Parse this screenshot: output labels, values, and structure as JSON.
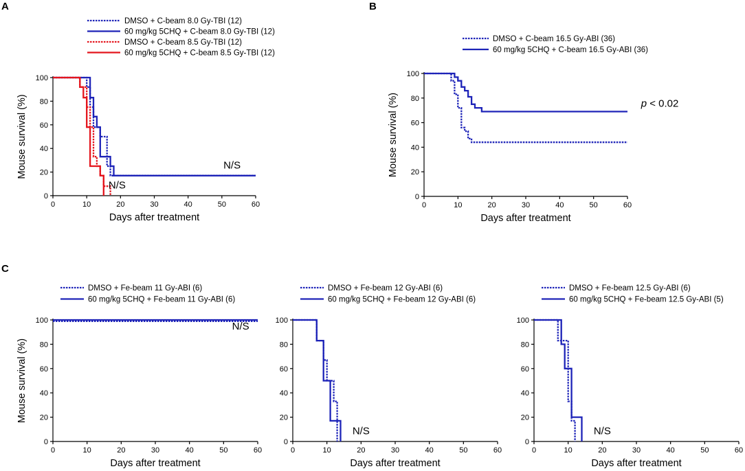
{
  "colors": {
    "blue": "#1d23b8",
    "red": "#e4141c",
    "axis": "#000000"
  },
  "panels": [
    {
      "letter": "A"
    },
    {
      "letter": "B"
    },
    {
      "letter": "C"
    }
  ],
  "chart_data": [
    {
      "type": "line",
      "id": "A",
      "panel": "A",
      "xlabel": "Days after treatment",
      "ylabel": "Mouse survival (%)",
      "xlim": [
        0,
        60
      ],
      "ylim": [
        0,
        100
      ],
      "xticks": [
        0,
        10,
        20,
        30,
        40,
        50,
        60
      ],
      "yticks": [
        0,
        20,
        40,
        60,
        80,
        100
      ],
      "grid": false,
      "annotations": [
        {
          "text": "N/S",
          "x": 53,
          "y": 23
        },
        {
          "text": "N/S",
          "x": 19,
          "y": 6
        }
      ],
      "series": [
        {
          "name": "DMSO + C-beam 8.0 Gy-TBI (12)",
          "color": "blue",
          "style": "dotted",
          "x": [
            0,
            10,
            10,
            11,
            11,
            12,
            12,
            14,
            14,
            16,
            16,
            17,
            17,
            60
          ],
          "y": [
            100,
            100,
            92,
            92,
            75,
            75,
            58,
            58,
            50,
            50,
            25,
            25,
            17,
            17
          ]
        },
        {
          "name": "60 mg/kg 5CHQ + C-beam 8.0 Gy-TBI (12)",
          "color": "blue",
          "style": "solid",
          "x": [
            0,
            11,
            11,
            12,
            12,
            13,
            13,
            14,
            14,
            17,
            17,
            18,
            18,
            60
          ],
          "y": [
            100,
            100,
            83,
            83,
            67,
            67,
            58,
            58,
            33,
            33,
            25,
            25,
            17,
            17
          ]
        },
        {
          "name": "DMSO + C-beam 8.5 Gy-TBI (12)",
          "color": "red",
          "style": "dotted",
          "x": [
            0,
            8,
            8,
            10,
            10,
            11,
            11,
            12,
            12,
            13,
            13,
            14,
            14,
            15,
            15,
            17,
            17
          ],
          "y": [
            100,
            100,
            92,
            92,
            75,
            75,
            58,
            58,
            33,
            33,
            25,
            25,
            17,
            17,
            8,
            8,
            0
          ]
        },
        {
          "name": "60 mg/kg 5CHQ + C-beam 8.5 Gy-TBI (12)",
          "color": "red",
          "style": "solid",
          "x": [
            0,
            8,
            8,
            9,
            9,
            10,
            10,
            11,
            11,
            14,
            14,
            15,
            15
          ],
          "y": [
            100,
            100,
            92,
            92,
            83,
            83,
            58,
            58,
            25,
            25,
            17,
            17,
            0
          ]
        }
      ]
    },
    {
      "type": "line",
      "id": "B",
      "panel": "B",
      "xlabel": "Days after treatment",
      "ylabel": "Mouse survival (%)",
      "xlim": [
        0,
        60
      ],
      "ylim": [
        0,
        100
      ],
      "xticks": [
        0,
        10,
        20,
        30,
        40,
        50,
        60
      ],
      "yticks": [
        0,
        20,
        40,
        60,
        80,
        100
      ],
      "grid": false,
      "annotation_p": {
        "p": "p",
        "rest": " < 0.02",
        "x": 64,
        "y": 73
      },
      "series": [
        {
          "name": "DMSO + C-beam 16.5 Gy-ABI (36)",
          "color": "blue",
          "style": "dotted",
          "x": [
            0,
            8,
            8,
            9,
            9,
            10,
            10,
            11,
            11,
            12,
            12,
            13,
            13,
            14,
            14,
            60
          ],
          "y": [
            100,
            100,
            94,
            94,
            83,
            83,
            72,
            72,
            56,
            56,
            53,
            53,
            47,
            47,
            44,
            44
          ]
        },
        {
          "name": "60 mg/kg 5CHQ + C-beam 16.5 Gy-ABI (36)",
          "color": "blue",
          "style": "solid",
          "x": [
            0,
            9,
            9,
            10,
            10,
            11,
            11,
            12,
            12,
            13,
            13,
            14,
            14,
            15,
            15,
            17,
            17,
            60
          ],
          "y": [
            100,
            100,
            97,
            97,
            94,
            94,
            89,
            89,
            86,
            86,
            81,
            81,
            75,
            75,
            72,
            72,
            69,
            69
          ]
        }
      ]
    },
    {
      "type": "line",
      "id": "C1",
      "panel": "C",
      "xlabel": "Days after treatment",
      "ylabel": "Mouse survival (%)",
      "xlim": [
        0,
        60
      ],
      "ylim": [
        0,
        100
      ],
      "xticks": [
        0,
        10,
        20,
        30,
        40,
        50,
        60
      ],
      "yticks": [
        0,
        20,
        40,
        60,
        80,
        100
      ],
      "grid": false,
      "annotations": [
        {
          "text": "N/S",
          "x": 55,
          "y": 92
        }
      ],
      "series": [
        {
          "name": "DMSO + Fe-beam 11 Gy-ABI (6)",
          "color": "blue",
          "style": "dotted",
          "x": [
            0,
            60
          ],
          "y": [
            99,
            99
          ]
        },
        {
          "name": "60 mg/kg 5CHQ + Fe-beam 11 Gy-ABI (6)",
          "color": "blue",
          "style": "solid",
          "x": [
            0,
            60
          ],
          "y": [
            100,
            100
          ]
        }
      ]
    },
    {
      "type": "line",
      "id": "C2",
      "panel": "C",
      "xlabel": "Days after treatment",
      "ylabel": "",
      "xlim": [
        0,
        60
      ],
      "ylim": [
        0,
        100
      ],
      "xticks": [
        0,
        10,
        20,
        30,
        40,
        50,
        60
      ],
      "yticks": [
        0,
        20,
        40,
        60,
        80,
        100
      ],
      "grid": false,
      "annotations": [
        {
          "text": "N/S",
          "x": 20,
          "y": 6
        }
      ],
      "series": [
        {
          "name": "DMSO + Fe-beam 12 Gy-ABI (6)",
          "color": "blue",
          "style": "dotted",
          "x": [
            0,
            7,
            7,
            9,
            9,
            10,
            10,
            12,
            12,
            13,
            13
          ],
          "y": [
            100,
            100,
            83,
            83,
            67,
            67,
            50,
            50,
            33,
            33,
            0
          ]
        },
        {
          "name": "60 mg/kg 5CHQ + Fe-beam 12 Gy-ABI (6)",
          "color": "blue",
          "style": "solid",
          "x": [
            0,
            7,
            7,
            8,
            8,
            9,
            9,
            11,
            11,
            12,
            12,
            14,
            14
          ],
          "y": [
            100,
            100,
            83,
            83,
            83,
            83,
            50,
            50,
            17,
            17,
            17,
            17,
            0
          ]
        }
      ]
    },
    {
      "type": "line",
      "id": "C3",
      "panel": "C",
      "xlabel": "Days after treatment",
      "ylabel": "",
      "xlim": [
        0,
        60
      ],
      "ylim": [
        0,
        100
      ],
      "xticks": [
        0,
        10,
        20,
        30,
        40,
        50,
        60
      ],
      "yticks": [
        0,
        20,
        40,
        60,
        80,
        100
      ],
      "grid": false,
      "annotations": [
        {
          "text": "N/S",
          "x": 20,
          "y": 6
        }
      ],
      "series": [
        {
          "name": "DMSO + Fe-beam 12.5 Gy-ABI (6)",
          "color": "blue",
          "style": "dotted",
          "x": [
            0,
            7,
            7,
            9,
            9,
            10,
            10,
            11,
            11,
            12,
            12
          ],
          "y": [
            100,
            100,
            83,
            83,
            83,
            83,
            33,
            33,
            17,
            17,
            0
          ]
        },
        {
          "name": "60 mg/kg 5CHQ + Fe-beam 12.5 Gy-ABI (5)",
          "color": "blue",
          "style": "solid",
          "x": [
            0,
            8,
            8,
            9,
            9,
            11,
            11,
            12,
            12,
            14,
            14
          ],
          "y": [
            100,
            100,
            80,
            80,
            60,
            60,
            20,
            20,
            20,
            20,
            0
          ]
        }
      ]
    }
  ]
}
